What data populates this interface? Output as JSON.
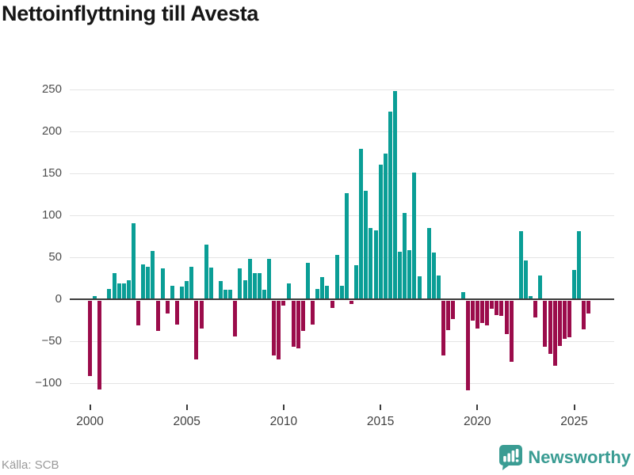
{
  "header": {
    "title": "Nettoinflyttning till Avesta"
  },
  "footer": {
    "source": "Källa: SCB",
    "brand": "Newsworthy"
  },
  "colors": {
    "positive": "#0a9e96",
    "negative": "#9b0c4b",
    "grid": "#e4e4e4",
    "zero_line": "#3c3c3c",
    "axis_text": "#4d4d4d",
    "title_text": "#161616",
    "source_text": "#9a9a9a",
    "brand_teal": "#3a9c93",
    "background": "#ffffff"
  },
  "chart_data": {
    "type": "bar",
    "title": "Nettoinflyttning till Avesta",
    "xlabel": "",
    "ylabel": "",
    "grid": true,
    "legend_position": "none",
    "ylim": [
      -125,
      258
    ],
    "yticks": [
      250,
      200,
      150,
      100,
      50,
      0,
      -50,
      -100
    ],
    "ytick_labels": [
      "250",
      "200",
      "150",
      "100",
      "50",
      "0",
      "−50",
      "−100"
    ],
    "xtick_years": [
      2000,
      2005,
      2010,
      2015,
      2020,
      2025
    ],
    "xtick_labels": [
      "2000",
      "2005",
      "2010",
      "2015",
      "2020",
      "2025"
    ],
    "quarters": [
      "2000-Q1",
      "2000-Q2",
      "2000-Q3",
      "2000-Q4",
      "2001-Q1",
      "2001-Q2",
      "2001-Q3",
      "2001-Q4",
      "2002-Q1",
      "2002-Q2",
      "2002-Q3",
      "2002-Q4",
      "2003-Q1",
      "2003-Q2",
      "2003-Q3",
      "2003-Q4",
      "2004-Q1",
      "2004-Q2",
      "2004-Q3",
      "2004-Q4",
      "2005-Q1",
      "2005-Q2",
      "2005-Q3",
      "2005-Q4",
      "2006-Q1",
      "2006-Q2",
      "2006-Q3",
      "2006-Q4",
      "2007-Q1",
      "2007-Q2",
      "2007-Q3",
      "2007-Q4",
      "2008-Q1",
      "2008-Q2",
      "2008-Q3",
      "2008-Q4",
      "2009-Q1",
      "2009-Q2",
      "2009-Q3",
      "2009-Q4",
      "2010-Q1",
      "2010-Q2",
      "2010-Q3",
      "2010-Q4",
      "2011-Q1",
      "2011-Q2",
      "2011-Q3",
      "2011-Q4",
      "2012-Q1",
      "2012-Q2",
      "2012-Q3",
      "2012-Q4",
      "2013-Q1",
      "2013-Q2",
      "2013-Q3",
      "2013-Q4",
      "2014-Q1",
      "2014-Q2",
      "2014-Q3",
      "2014-Q4",
      "2015-Q1",
      "2015-Q2",
      "2015-Q3",
      "2015-Q4",
      "2016-Q1",
      "2016-Q2",
      "2016-Q3",
      "2016-Q4",
      "2017-Q1",
      "2017-Q2",
      "2017-Q3",
      "2017-Q4",
      "2018-Q1",
      "2018-Q2",
      "2018-Q3",
      "2018-Q4",
      "2019-Q1",
      "2019-Q2",
      "2019-Q3",
      "2019-Q4",
      "2020-Q1",
      "2020-Q2",
      "2020-Q3",
      "2020-Q4",
      "2021-Q1",
      "2021-Q2",
      "2021-Q3",
      "2021-Q4",
      "2022-Q1",
      "2022-Q2",
      "2022-Q3",
      "2022-Q4",
      "2023-Q1",
      "2023-Q2",
      "2023-Q3",
      "2023-Q4",
      "2024-Q1",
      "2024-Q2",
      "2024-Q3",
      "2024-Q4",
      "2025-Q1",
      "2025-Q2",
      "2025-Q3",
      "2025-Q4"
    ],
    "values": [
      -90,
      4,
      -106,
      0,
      12,
      31,
      19,
      19,
      23,
      91,
      -29,
      42,
      39,
      58,
      -36,
      37,
      -15,
      16,
      -28,
      15,
      22,
      39,
      -70,
      -33,
      65,
      38,
      0,
      22,
      11,
      11,
      -42,
      37,
      23,
      48,
      31,
      31,
      11,
      48,
      -65,
      -70,
      -6,
      19,
      -55,
      -57,
      -36,
      43,
      -28,
      12,
      26,
      16,
      -8,
      53,
      16,
      126,
      -4,
      41,
      179,
      129,
      85,
      82,
      160,
      174,
      224,
      248,
      57,
      103,
      59,
      151,
      27,
      0,
      85,
      56,
      28,
      -65,
      -35,
      -22,
      0,
      9,
      -107,
      -24,
      -33,
      -26,
      -29,
      -9,
      -17,
      -18,
      -40,
      -73,
      0,
      81,
      46,
      4,
      -20,
      28,
      -55,
      -63,
      -77,
      -54,
      -45,
      -43,
      35,
      81,
      -34,
      -15
    ]
  }
}
